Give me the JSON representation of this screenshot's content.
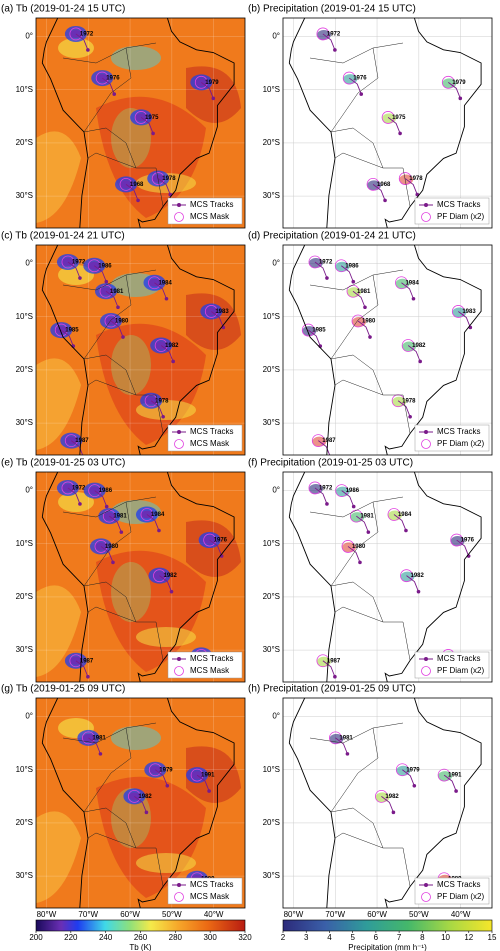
{
  "map": {
    "lonlim": [
      -82.5,
      -32.5
    ],
    "latlim": [
      -36,
      3.5
    ],
    "xticks": [
      {
        "value": -80,
        "label": "80°W"
      },
      {
        "value": -70,
        "label": "70°W"
      },
      {
        "value": -60,
        "label": "60°W"
      },
      {
        "value": -50,
        "label": "50°W"
      },
      {
        "value": -40,
        "label": "40°W"
      }
    ],
    "yticks": [
      {
        "value": 0,
        "label": "0°"
      },
      {
        "value": -10,
        "label": "10°S"
      },
      {
        "value": -20,
        "label": "20°S"
      },
      {
        "value": -30,
        "label": "30°S"
      }
    ]
  },
  "panels": [
    {
      "title": "(a) Tb (2019-01-24 15 UTC)",
      "kind": "tb",
      "legend": [
        "MCS Tracks",
        "MCS Mask"
      ],
      "mcs": [
        {
          "label": "1972",
          "lon": -72,
          "lat": 0.5
        },
        {
          "label": "1976",
          "lon": -65.7,
          "lat": -7.8
        },
        {
          "label": "1979",
          "lon": -42,
          "lat": -8.6
        },
        {
          "label": "1975",
          "lon": -56.4,
          "lat": -15.2
        },
        {
          "label": "1978",
          "lon": -52.3,
          "lat": -26.7
        },
        {
          "label": "1968",
          "lon": -60,
          "lat": -27.8
        }
      ]
    },
    {
      "title": "(b) Precipitation (2019-01-24 15 UTC)",
      "kind": "pr",
      "legend": [
        "MCS Tracks",
        "PF Diam (x2)"
      ],
      "mcs": [
        {
          "label": "1972",
          "lon": -72,
          "lat": 0.5
        },
        {
          "label": "1976",
          "lon": -65.7,
          "lat": -7.8
        },
        {
          "label": "1979",
          "lon": -42,
          "lat": -8.6
        },
        {
          "label": "1975",
          "lon": -56.4,
          "lat": -15.2
        },
        {
          "label": "1978",
          "lon": -52.3,
          "lat": -26.7
        },
        {
          "label": "1968",
          "lon": -60,
          "lat": -27.8
        }
      ]
    },
    {
      "title": "(c) Tb (2019-01-24 21 UTC)",
      "kind": "tb",
      "legend": [
        "MCS Tracks",
        "MCS Mask"
      ],
      "mcs": [
        {
          "label": "1972",
          "lon": -73.9,
          "lat": 0.3
        },
        {
          "label": "1986",
          "lon": -67.6,
          "lat": -0.4
        },
        {
          "label": "1984",
          "lon": -53.2,
          "lat": -3.6
        },
        {
          "label": "1981",
          "lon": -64.8,
          "lat": -5.2
        },
        {
          "label": "1980",
          "lon": -63.6,
          "lat": -10.8
        },
        {
          "label": "1985",
          "lon": -75.5,
          "lat": -12.5
        },
        {
          "label": "1983",
          "lon": -39.6,
          "lat": -9
        },
        {
          "label": "1982",
          "lon": -51.6,
          "lat": -15.4
        },
        {
          "label": "1978",
          "lon": -54,
          "lat": -25.8
        },
        {
          "label": "1987",
          "lon": -73.1,
          "lat": -33.3
        }
      ]
    },
    {
      "title": "(d) Precipitation (2019-01-24 21 UTC)",
      "kind": "pr",
      "legend": [
        "MCS Tracks",
        "PF Diam (x2)"
      ],
      "mcs": [
        {
          "label": "1972",
          "lon": -73.9,
          "lat": 0.3
        },
        {
          "label": "1986",
          "lon": -67.6,
          "lat": -0.4
        },
        {
          "label": "1984",
          "lon": -53.2,
          "lat": -3.6
        },
        {
          "label": "1981",
          "lon": -64.8,
          "lat": -5.2
        },
        {
          "label": "1980",
          "lon": -63.6,
          "lat": -10.8
        },
        {
          "label": "1985",
          "lon": -75.5,
          "lat": -12.5
        },
        {
          "label": "1983",
          "lon": -39.6,
          "lat": -9
        },
        {
          "label": "1982",
          "lon": -51.6,
          "lat": -15.4
        },
        {
          "label": "1978",
          "lon": -54,
          "lat": -25.8
        },
        {
          "label": "1987",
          "lon": -73.1,
          "lat": -33.3
        }
      ]
    },
    {
      "title": "(e) Tb (2019-01-25 03 UTC)",
      "kind": "tb",
      "legend": [
        "MCS Tracks",
        "MCS Mask"
      ],
      "mcs": [
        {
          "label": "1972",
          "lon": -73.9,
          "lat": 0.5
        },
        {
          "label": "1986",
          "lon": -67.5,
          "lat": 0
        },
        {
          "label": "1981",
          "lon": -64,
          "lat": -4.8
        },
        {
          "label": "1984",
          "lon": -55,
          "lat": -4.5
        },
        {
          "label": "1980",
          "lon": -66,
          "lat": -10.5
        },
        {
          "label": "1976",
          "lon": -40,
          "lat": -9.3
        },
        {
          "label": "1982",
          "lon": -52,
          "lat": -16
        },
        {
          "label": "1989",
          "lon": -42,
          "lat": -31
        },
        {
          "label": "1987",
          "lon": -72,
          "lat": -32
        }
      ]
    },
    {
      "title": "(f) Precipitation (2019-01-25 03 UTC)",
      "kind": "pr",
      "legend": [
        "MCS Tracks",
        "PF Diam (x2)"
      ],
      "mcs": [
        {
          "label": "1972",
          "lon": -73.9,
          "lat": 0.5
        },
        {
          "label": "1986",
          "lon": -67.5,
          "lat": 0
        },
        {
          "label": "1981",
          "lon": -64,
          "lat": -4.8
        },
        {
          "label": "1984",
          "lon": -55,
          "lat": -4.5
        },
        {
          "label": "1980",
          "lon": -66,
          "lat": -10.5
        },
        {
          "label": "1976",
          "lon": -40,
          "lat": -9.3
        },
        {
          "label": "1982",
          "lon": -52,
          "lat": -16
        },
        {
          "label": "1989",
          "lon": -42,
          "lat": -31
        },
        {
          "label": "1987",
          "lon": -72,
          "lat": -32
        }
      ]
    },
    {
      "title": "(g) Tb (2019-01-25 09 UTC)",
      "kind": "tb",
      "legend": [
        "MCS Tracks",
        "MCS Mask"
      ],
      "mcs": [
        {
          "label": "1981",
          "lon": -69,
          "lat": -4
        },
        {
          "label": "1979",
          "lon": -53,
          "lat": -10
        },
        {
          "label": "1991",
          "lon": -43,
          "lat": -11
        },
        {
          "label": "1982",
          "lon": -58,
          "lat": -15
        },
        {
          "label": "1989",
          "lon": -43,
          "lat": -30.5
        }
      ]
    },
    {
      "title": "(h) Precipitation (2019-01-25 09 UTC)",
      "kind": "pr",
      "legend": [
        "MCS Tracks",
        "PF Diam (x2)"
      ],
      "mcs": [
        {
          "label": "1981",
          "lon": -69,
          "lat": -4
        },
        {
          "label": "1979",
          "lon": -53,
          "lat": -10
        },
        {
          "label": "1991",
          "lon": -43,
          "lat": -11
        },
        {
          "label": "1982",
          "lon": -58,
          "lat": -15
        },
        {
          "label": "1989",
          "lon": -43,
          "lat": -30.5
        }
      ]
    }
  ],
  "colorbars": [
    {
      "label": "Tb (K)",
      "lim": [
        200,
        320
      ],
      "ticks": [
        200,
        220,
        240,
        260,
        280,
        300,
        320
      ]
    },
    {
      "label": "Precipitation (mm h⁻¹)",
      "ticks": [
        2,
        3,
        4,
        5,
        6,
        7,
        8,
        10,
        12,
        15
      ]
    }
  ]
}
